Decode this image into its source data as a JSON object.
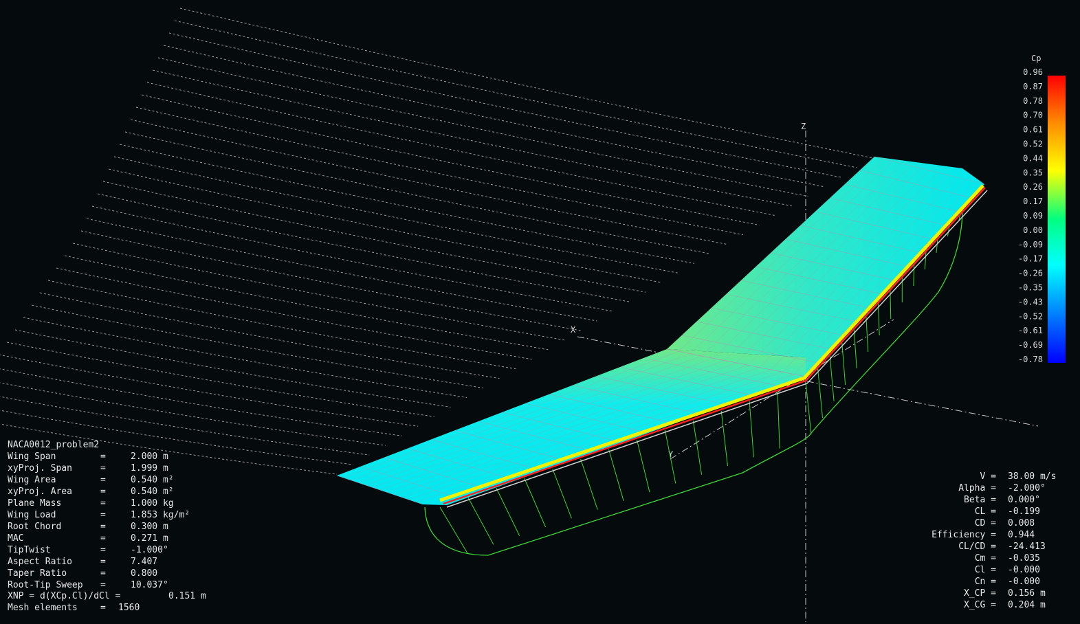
{
  "project_name": "NACA0012_problem2",
  "wing_properties": [
    {
      "label": "Wing Span",
      "eq": "=",
      "value": "2.000 m"
    },
    {
      "label": "xyProj. Span",
      "eq": "=",
      "value": "1.999 m"
    },
    {
      "label": "Wing Area",
      "eq": "=",
      "value": "0.540 m²"
    },
    {
      "label": "xyProj. Area",
      "eq": "=",
      "value": "0.540 m²"
    },
    {
      "label": "Plane Mass",
      "eq": "=",
      "value": "1.000 kg"
    },
    {
      "label": "Wing Load",
      "eq": "=",
      "value": "1.853 kg/m²"
    },
    {
      "label": "Root Chord",
      "eq": "=",
      "value": "0.300 m"
    },
    {
      "label": "MAC",
      "eq": "=",
      "value": "0.271 m"
    },
    {
      "label": "TipTwist",
      "eq": "=",
      "value": "-1.000°"
    },
    {
      "label": "Aspect Ratio",
      "eq": "=",
      "value": "7.407"
    },
    {
      "label": "Taper Ratio",
      "eq": "=",
      "value": "0.800"
    },
    {
      "label": "Root-Tip Sweep",
      "eq": "=",
      "value": "10.037°"
    }
  ],
  "xnp": {
    "label": "XNP = d(XCp.Cl)/dCl =",
    "value": "0.151 m"
  },
  "mesh": {
    "label": "Mesh elements",
    "eq": "=",
    "value": "1560"
  },
  "results": [
    {
      "label": "V",
      "value": "38.00 m/s"
    },
    {
      "label": "Alpha",
      "value": "-2.000°"
    },
    {
      "label": "Beta",
      "value": "0.000°"
    },
    {
      "label": "CL",
      "value": "-0.199"
    },
    {
      "label": "CD",
      "value": "0.008"
    },
    {
      "label": "Efficiency",
      "value": "0.944"
    },
    {
      "label": "CL/CD",
      "value": "-24.413"
    },
    {
      "label": "Cm",
      "value": "-0.035"
    },
    {
      "label": "Cl",
      "value": "-0.000"
    },
    {
      "label": "Cn",
      "value": "-0.000"
    },
    {
      "label": "X_CP",
      "value": "0.156 m"
    },
    {
      "label": "X_CG",
      "value": "0.204 m"
    }
  ],
  "legend": {
    "title": "Cp",
    "ticks": [
      "0.96",
      "0.87",
      "0.78",
      "0.70",
      "0.61",
      "0.52",
      "0.44",
      "0.35",
      "0.26",
      "0.17",
      "0.09",
      "0.00",
      "-0.09",
      "-0.17",
      "-0.26",
      "-0.35",
      "-0.43",
      "-0.52",
      "-0.61",
      "-0.69",
      "-0.78"
    ],
    "colors": [
      "#ff0000",
      "#ff8800",
      "#ffff00",
      "#00ff80",
      "#00ffff",
      "#0080ff",
      "#0000ff"
    ]
  },
  "axes": {
    "x": "X",
    "y": "Y",
    "z": "Z"
  },
  "colors": {
    "background": "#050a0c",
    "wing_surface": "#00f0f0",
    "lift_curve": "#39d833",
    "streamlines": "#9a9a9a",
    "text": "#e8e8e8"
  }
}
